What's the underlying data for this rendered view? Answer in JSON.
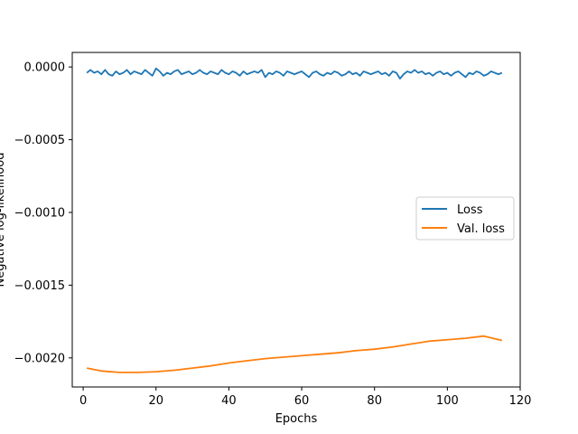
{
  "chart_data": {
    "type": "line",
    "title": "",
    "xlabel": "Epochs",
    "ylabel": "Negative log-likelihood",
    "xlim": [
      -3,
      120
    ],
    "ylim": [
      -0.0022,
      0.0001
    ],
    "x_ticks": [
      0,
      20,
      40,
      60,
      80,
      100,
      120
    ],
    "x_tick_labels": [
      "0",
      "20",
      "40",
      "60",
      "80",
      "100",
      "120"
    ],
    "y_ticks": [
      0.0,
      -0.0005,
      -0.001,
      -0.0015,
      -0.002
    ],
    "y_tick_labels": [
      "0.0000",
      "−0.0005",
      "−0.0010",
      "−0.0015",
      "−0.0020"
    ],
    "grid": false,
    "legend_position": "center-right",
    "series": [
      {
        "name": "Loss",
        "color": "#1f77b4",
        "x": [
          1,
          2,
          3,
          4,
          5,
          6,
          7,
          8,
          9,
          10,
          11,
          12,
          13,
          14,
          15,
          16,
          17,
          18,
          19,
          20,
          21,
          22,
          23,
          24,
          25,
          26,
          27,
          28,
          29,
          30,
          31,
          32,
          33,
          34,
          35,
          36,
          37,
          38,
          39,
          40,
          41,
          42,
          43,
          44,
          45,
          46,
          47,
          48,
          49,
          50,
          51,
          52,
          53,
          54,
          55,
          56,
          57,
          58,
          59,
          60,
          61,
          62,
          63,
          64,
          65,
          66,
          67,
          68,
          69,
          70,
          71,
          72,
          73,
          74,
          75,
          76,
          77,
          78,
          79,
          80,
          81,
          82,
          83,
          84,
          85,
          86,
          87,
          88,
          89,
          90,
          91,
          92,
          93,
          94,
          95,
          96,
          97,
          98,
          99,
          100,
          101,
          102,
          103,
          104,
          105,
          106,
          107,
          108,
          109,
          110,
          111,
          112,
          113,
          114,
          115
        ],
        "y": [
          -4e-05,
          -2e-05,
          -4e-05,
          -3e-05,
          -5e-05,
          -2e-05,
          -5e-05,
          -6e-05,
          -3e-05,
          -5e-05,
          -4e-05,
          -2e-05,
          -5e-05,
          -3e-05,
          -4e-05,
          -5e-05,
          -2e-05,
          -4e-05,
          -6e-05,
          -1e-05,
          -3e-05,
          -6e-05,
          -4e-05,
          -5e-05,
          -3e-05,
          -2e-05,
          -5e-05,
          -4e-05,
          -3e-05,
          -5e-05,
          -4e-05,
          -2e-05,
          -4e-05,
          -5e-05,
          -3e-05,
          -4e-05,
          -5e-05,
          -2e-05,
          -4e-05,
          -5e-05,
          -3e-05,
          -4e-05,
          -6e-05,
          -3e-05,
          -5e-05,
          -4e-05,
          -3e-05,
          -4e-05,
          -2e-05,
          -7e-05,
          -4e-05,
          -5e-05,
          -3e-05,
          -4e-05,
          -6e-05,
          -3e-05,
          -4e-05,
          -5e-05,
          -4e-05,
          -3e-05,
          -5e-05,
          -7e-05,
          -4e-05,
          -3e-05,
          -5e-05,
          -6e-05,
          -4e-05,
          -5e-05,
          -3e-05,
          -4e-05,
          -6e-05,
          -5e-05,
          -3e-05,
          -5e-05,
          -4e-05,
          -6e-05,
          -3e-05,
          -4e-05,
          -5e-05,
          -4e-05,
          -3e-05,
          -5e-05,
          -4e-05,
          -6e-05,
          -3e-05,
          -4e-05,
          -8e-05,
          -5e-05,
          -3e-05,
          -4e-05,
          -2e-05,
          -4e-05,
          -3e-05,
          -5e-05,
          -4e-05,
          -6e-05,
          -4e-05,
          -3e-05,
          -5e-05,
          -4e-05,
          -6e-05,
          -4e-05,
          -3e-05,
          -5e-05,
          -7e-05,
          -4e-05,
          -5e-05,
          -3e-05,
          -4e-05,
          -6e-05,
          -5e-05,
          -3e-05,
          -4e-05,
          -5e-05,
          -4e-05
        ],
        "note": ""
      },
      {
        "name": "Val. loss",
        "color": "#ff7f0e",
        "x": [
          1,
          5,
          10,
          15,
          20,
          25,
          30,
          35,
          40,
          45,
          50,
          55,
          60,
          65,
          70,
          75,
          80,
          85,
          90,
          95,
          100,
          105,
          110,
          115
        ],
        "y": [
          -0.00207,
          -0.00209,
          -0.0021,
          -0.0021,
          -0.002095,
          -0.002085,
          -0.00207,
          -0.002055,
          -0.002035,
          -0.00202,
          -0.002005,
          -0.001995,
          -0.001985,
          -0.001975,
          -0.001965,
          -0.00195,
          -0.00194,
          -0.001925,
          -0.001905,
          -0.001885,
          -0.001875,
          -0.001865,
          -0.00185,
          -0.00188
        ]
      }
    ]
  }
}
